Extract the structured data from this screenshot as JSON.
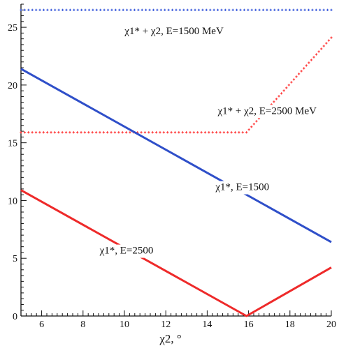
{
  "chart_data": {
    "type": "line",
    "xlabel": "χ2, °",
    "ylabel": "",
    "xlim": [
      5,
      20
    ],
    "ylim": [
      0,
      27
    ],
    "x_ticks": [
      6,
      8,
      10,
      12,
      14,
      16,
      18,
      20
    ],
    "y_ticks": [
      0,
      5,
      10,
      15,
      20,
      25
    ],
    "grid": false,
    "series": [
      {
        "id": "sum1500",
        "style": "dotted",
        "color": "#3b5bdb",
        "x": [
          5,
          20
        ],
        "y": [
          26.5,
          26.5
        ]
      },
      {
        "id": "sum2500",
        "style": "dotted",
        "color": "#ff3b3b",
        "x": [
          5,
          15.9,
          20
        ],
        "y": [
          15.9,
          15.9,
          24.1
        ]
      },
      {
        "id": "chi1_1500",
        "style": "solid",
        "color": "#2f4fc9",
        "x": [
          5,
          20
        ],
        "y": [
          21.4,
          6.4
        ]
      },
      {
        "id": "chi1_2500",
        "style": "solid",
        "color": "#ee2a2a",
        "x": [
          5,
          15.9,
          20
        ],
        "y": [
          10.9,
          0.0,
          4.2
        ]
      }
    ],
    "annotations": [
      {
        "id": "a1",
        "text": "χ1* + χ2,  E=1500 MeV",
        "x": 12.4,
        "y": 24.4
      },
      {
        "id": "a2",
        "text": "χ1* + χ2,  E=2500 MeV",
        "x": 16.9,
        "y": 17.5
      },
      {
        "id": "a3",
        "text": "χ1*,  E=1500",
        "x": 15.7,
        "y": 10.9
      },
      {
        "id": "a4",
        "text": "χ1*,  E=2500",
        "x": 10.1,
        "y": 5.4
      }
    ]
  }
}
